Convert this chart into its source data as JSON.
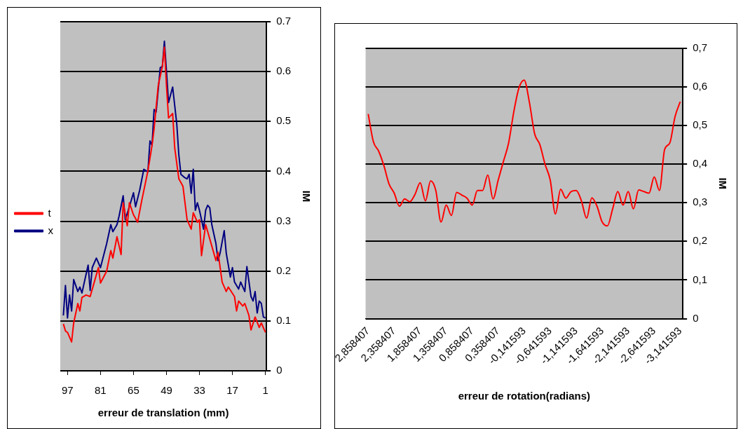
{
  "chart_data": [
    {
      "type": "line",
      "xlabel": "erreur de translation (mm)",
      "ylabel": "IM",
      "xlim": [
        100.5,
        0.5
      ],
      "xticks": [
        97,
        81,
        65,
        49,
        33,
        17,
        1
      ],
      "ylim": [
        0,
        0.7
      ],
      "yticks": [
        0,
        0.1,
        0.2,
        0.3,
        0.4,
        0.5,
        0.6,
        0.7
      ],
      "grid": "y",
      "legend": "left",
      "marker": "none",
      "series": [
        {
          "name": "t",
          "color": "#ff0000",
          "x": [
            99,
            98,
            97,
            95,
            94,
            92,
            91,
            90,
            88,
            86,
            84,
            82,
            81,
            78,
            76,
            75,
            73,
            71,
            70,
            68,
            67,
            65,
            63,
            61,
            58,
            56,
            55,
            53,
            51,
            50,
            49,
            48,
            46,
            45,
            43,
            41,
            39,
            37,
            36,
            34,
            33,
            32,
            30,
            29,
            27,
            25,
            24,
            22,
            20,
            19,
            16,
            15,
            14,
            12,
            11,
            9,
            8,
            6,
            4,
            3,
            1
          ],
          "values": [
            0.094,
            0.08,
            0.077,
            0.058,
            0.096,
            0.135,
            0.12,
            0.147,
            0.152,
            0.149,
            0.178,
            0.207,
            0.176,
            0.2,
            0.241,
            0.226,
            0.269,
            0.233,
            0.337,
            0.291,
            0.337,
            0.313,
            0.298,
            0.341,
            0.401,
            0.452,
            0.485,
            0.572,
            0.61,
            0.649,
            0.572,
            0.507,
            0.516,
            0.447,
            0.385,
            0.37,
            0.303,
            0.284,
            0.317,
            0.298,
            0.303,
            0.231,
            0.293,
            0.279,
            0.25,
            0.221,
            0.238,
            0.178,
            0.159,
            0.168,
            0.149,
            0.12,
            0.14,
            0.13,
            0.135,
            0.111,
            0.082,
            0.108,
            0.087,
            0.096,
            0.077
          ]
        },
        {
          "name": "x",
          "color": "#000080",
          "x": [
            99,
            98,
            97,
            96,
            95,
            94,
            92,
            91,
            90,
            87,
            86,
            85,
            83,
            81,
            78,
            76,
            75,
            73,
            72,
            70,
            69,
            67,
            65,
            64,
            62,
            60,
            58,
            57,
            56,
            55,
            54,
            52,
            51,
            50,
            49,
            48,
            46,
            44,
            43,
            42,
            40,
            39,
            38,
            37,
            36,
            35,
            34,
            33,
            31,
            30,
            29,
            28,
            27,
            25,
            24,
            23,
            21,
            20,
            18,
            17,
            16,
            14,
            13,
            11,
            10,
            8,
            7,
            6,
            5,
            4,
            3,
            2,
            1
          ],
          "values": [
            0.111,
            0.171,
            0.106,
            0.152,
            0.12,
            0.183,
            0.159,
            0.168,
            0.156,
            0.212,
            0.161,
            0.207,
            0.226,
            0.207,
            0.255,
            0.293,
            0.279,
            0.293,
            0.31,
            0.351,
            0.303,
            0.329,
            0.357,
            0.329,
            0.362,
            0.404,
            0.399,
            0.461,
            0.452,
            0.524,
            0.519,
            0.608,
            0.61,
            0.661,
            0.601,
            0.538,
            0.569,
            0.495,
            0.433,
            0.394,
            0.387,
            0.385,
            0.394,
            0.356,
            0.404,
            0.322,
            0.337,
            0.322,
            0.284,
            0.322,
            0.332,
            0.327,
            0.293,
            0.255,
            0.221,
            0.236,
            0.281,
            0.236,
            0.188,
            0.207,
            0.178,
            0.164,
            0.178,
            0.159,
            0.209,
            0.149,
            0.14,
            0.159,
            0.116,
            0.14,
            0.135,
            0.108,
            0.106
          ]
        }
      ]
    },
    {
      "type": "line",
      "xlabel": "erreur de rotation(radians)",
      "ylabel": "IM",
      "ylim": [
        0,
        0.7
      ],
      "yticks": [
        {
          "value": 0,
          "label": "0"
        },
        {
          "value": 0.1,
          "label": "0,1"
        },
        {
          "value": 0.2,
          "label": "0,2"
        },
        {
          "value": 0.3,
          "label": "0,3"
        },
        {
          "value": 0.4,
          "label": "0,4"
        },
        {
          "value": 0.5,
          "label": "0,5"
        },
        {
          "value": 0.6,
          "label": "0,6"
        },
        {
          "value": 0.7,
          "label": "0,7"
        }
      ],
      "grid": "y",
      "marker": "none",
      "categories": [
        "2,858407",
        null,
        null,
        null,
        null,
        "2,358407",
        null,
        null,
        null,
        null,
        "1,858407",
        null,
        null,
        null,
        null,
        "1,358407",
        null,
        null,
        null,
        null,
        "0,858407",
        null,
        null,
        null,
        null,
        "0,358407",
        null,
        null,
        null,
        null,
        "-0,141593",
        null,
        null,
        null,
        null,
        "-0,641593",
        null,
        null,
        null,
        null,
        "-1,141593",
        null,
        null,
        null,
        null,
        "-1,641593",
        null,
        null,
        null,
        null,
        "-2,141593",
        null,
        null,
        null,
        null,
        "-2,641593",
        null,
        null,
        null,
        null,
        "-3,141593"
      ],
      "series": [
        {
          "color": "#ff0000",
          "values": [
            0.53,
            0.458,
            0.434,
            0.397,
            0.349,
            0.325,
            0.291,
            0.31,
            0.303,
            0.322,
            0.352,
            0.305,
            0.357,
            0.332,
            0.25,
            0.294,
            0.267,
            0.327,
            0.32,
            0.312,
            0.294,
            0.332,
            0.332,
            0.372,
            0.31,
            0.359,
            0.407,
            0.455,
            0.536,
            0.598,
            0.618,
            0.56,
            0.479,
            0.451,
            0.4,
            0.359,
            0.271,
            0.335,
            0.312,
            0.329,
            0.332,
            0.305,
            0.26,
            0.313,
            0.291,
            0.25,
            0.24,
            0.284,
            0.329,
            0.294,
            0.329,
            0.284,
            0.333,
            0.329,
            0.325,
            0.367,
            0.332,
            0.438,
            0.455,
            0.523,
            0.562
          ]
        }
      ]
    }
  ]
}
